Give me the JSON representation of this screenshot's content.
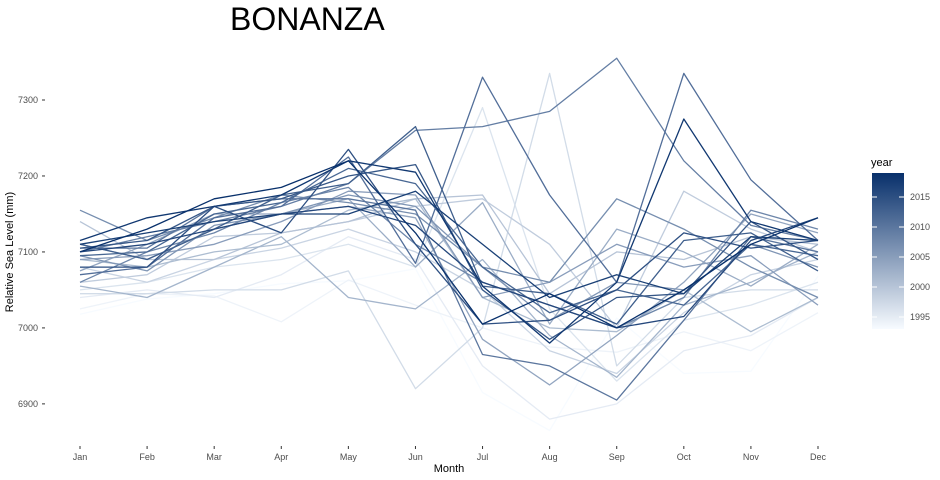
{
  "chart_data": {
    "type": "line",
    "title": "BONANZA",
    "xlabel": "Month",
    "ylabel": "Relative Sea Level (mm)",
    "categories": [
      "Jan",
      "Feb",
      "Mar",
      "Apr",
      "May",
      "Jun",
      "Jul",
      "Aug",
      "Sep",
      "Oct",
      "Nov",
      "Dec"
    ],
    "ylim": [
      6850,
      7370
    ],
    "yticks": [
      6900,
      7000,
      7100,
      7200,
      7300
    ],
    "grid": false,
    "color_scale": {
      "title": "year",
      "low": 1993,
      "high": 2019,
      "low_color": "#f7fbff",
      "high_color": "#08306b",
      "ticks": [
        1995,
        2000,
        2005,
        2010,
        2015
      ]
    },
    "legend_position": "right",
    "series": [
      {
        "year": 1993,
        "values": [
          7018,
          7038,
          7045,
          7058,
          7062,
          7078,
          6915,
          6865,
          7013,
          6940,
          6943,
          7068
        ]
      },
      {
        "year": 1994,
        "values": [
          7025,
          7045,
          7042,
          7008,
          7063,
          7030,
          7000,
          6975,
          6968,
          6995,
          6970,
          7020
        ]
      },
      {
        "year": 1995,
        "values": [
          7040,
          7050,
          7040,
          7070,
          7120,
          7090,
          6950,
          6880,
          6900,
          6970,
          6990,
          7040
        ]
      },
      {
        "year": 1996,
        "values": [
          7050,
          7060,
          7080,
          7090,
          7110,
          7080,
          7290,
          7025,
          6930,
          7010,
          7030,
          7060
        ]
      },
      {
        "year": 1997,
        "values": [
          7045,
          7045,
          7050,
          7050,
          7075,
          6920,
          7000,
          7335,
          6950,
          7040,
          7050,
          7050
        ]
      },
      {
        "year": 1998,
        "values": [
          7080,
          7060,
          7090,
          7105,
          7130,
          7100,
          7050,
          6970,
          6940,
          7020,
          7070,
          7090
        ]
      },
      {
        "year": 1999,
        "values": [
          7060,
          7070,
          7120,
          7125,
          7140,
          7160,
          7170,
          7110,
          7000,
          7180,
          7130,
          7100
        ]
      },
      {
        "year": 2000,
        "values": [
          7140,
          7090,
          7090,
          7125,
          7140,
          7170,
          7175,
          7045,
          7100,
          7090,
          7120,
          7110
        ]
      },
      {
        "year": 2001,
        "values": [
          7090,
          7080,
          7100,
          7110,
          7155,
          7170,
          7040,
          7000,
          6995,
          7050,
          6995,
          7040
        ]
      },
      {
        "year": 2002,
        "values": [
          7055,
          7040,
          7080,
          7120,
          7040,
          7025,
          7090,
          6990,
          6935,
          7030,
          7060,
          7100
        ]
      },
      {
        "year": 2003,
        "values": [
          7110,
          7090,
          7130,
          7150,
          7170,
          7080,
          7165,
          7005,
          7130,
          7100,
          7055,
          7110
        ]
      },
      {
        "year": 2004,
        "values": [
          7075,
          7110,
          7150,
          7150,
          7160,
          7145,
          6985,
          6925,
          6990,
          7060,
          7150,
          7125
        ]
      },
      {
        "year": 2005,
        "values": [
          7090,
          7095,
          7110,
          7140,
          7180,
          7175,
          7040,
          7060,
          7110,
          7080,
          7095,
          7030
        ]
      },
      {
        "year": 2006,
        "values": [
          7095,
          7075,
          7135,
          7150,
          7175,
          7160,
          7080,
          7010,
          7060,
          7050,
          7110,
          7080
        ]
      },
      {
        "year": 2007,
        "values": [
          7155,
          7115,
          7145,
          7175,
          7165,
          7150,
          7080,
          7060,
          7170,
          7130,
          7080,
          7040
        ]
      },
      {
        "year": 2008,
        "values": [
          7060,
          7100,
          7125,
          7165,
          7185,
          7110,
          7060,
          7030,
          7000,
          7040,
          7155,
          7130
        ]
      },
      {
        "year": 2009,
        "values": [
          7100,
          7120,
          7140,
          7160,
          7190,
          7260,
          7265,
          7285,
          7355,
          7220,
          7135,
          7115
        ]
      },
      {
        "year": 2010,
        "values": [
          7105,
          7105,
          7160,
          7170,
          7170,
          7155,
          6965,
          6950,
          6905,
          7010,
          7120,
          7100
        ]
      },
      {
        "year": 2011,
        "values": [
          7070,
          7080,
          7145,
          7160,
          7225,
          7085,
          7330,
          7175,
          7060,
          7335,
          7195,
          7115
        ]
      },
      {
        "year": 2012,
        "values": [
          7095,
          7100,
          7150,
          7165,
          7210,
          7190,
          7080,
          7020,
          7050,
          7030,
          7110,
          7095
        ]
      },
      {
        "year": 2013,
        "values": [
          7110,
          7090,
          7130,
          7175,
          7190,
          7265,
          7055,
          7045,
          7005,
          7115,
          7125,
          7075
        ]
      },
      {
        "year": 2014,
        "values": [
          7105,
          7115,
          7160,
          7170,
          7200,
          7215,
          7050,
          6985,
          7040,
          7045,
          7140,
          7090
        ]
      },
      {
        "year": 2015,
        "values": [
          7080,
          7080,
          7160,
          7125,
          7235,
          7110,
          7005,
          7010,
          7050,
          7125,
          7105,
          7115
        ]
      },
      {
        "year": 2016,
        "values": [
          7100,
          7110,
          7130,
          7150,
          7160,
          7135,
          7060,
          7030,
          7000,
          7015,
          7115,
          7145
        ]
      },
      {
        "year": 2017,
        "values": [
          7110,
          7125,
          7140,
          7150,
          7150,
          7180,
          7110,
          7040,
          7070,
          7045,
          7120,
          7115
        ]
      },
      {
        "year": 2018,
        "values": [
          7115,
          7145,
          7160,
          7175,
          7220,
          7205,
          7055,
          6980,
          7060,
          7275,
          7140,
          7115
        ]
      },
      {
        "year": 2019,
        "values": [
          7100,
          7130,
          7170,
          7185,
          7220,
          7125,
          7005,
          7045,
          7000,
          7050,
          7110,
          7145
        ]
      }
    ]
  }
}
